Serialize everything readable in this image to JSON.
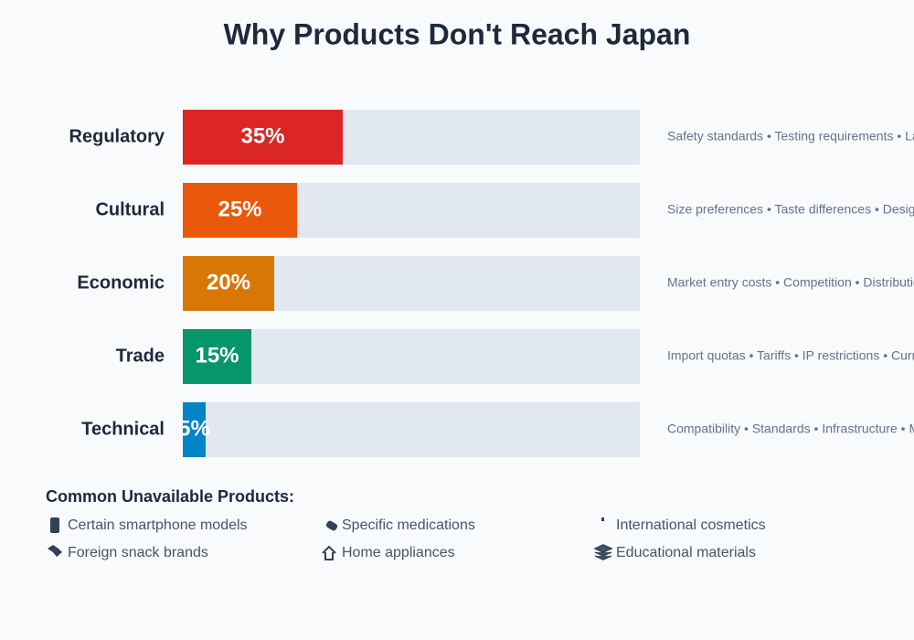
{
  "chart_data": {
    "type": "bar",
    "orientation": "horizontal",
    "title": "Why Products Don't Reach Japan",
    "categories": [
      "Regulatory",
      "Cultural",
      "Economic",
      "Trade",
      "Technical"
    ],
    "values": [
      35,
      25,
      20,
      15,
      5
    ],
    "value_labels": [
      "35%",
      "25%",
      "20%",
      "15%",
      "5%"
    ],
    "colors": [
      "#dc2626",
      "#ea580c",
      "#d97706",
      "#059669",
      "#0284c7"
    ],
    "track_color": "#e2e8f0",
    "xlim": [
      0,
      100
    ],
    "descriptions": [
      "Safety standards • Testing requirements • La",
      "Size preferences • Taste differences • Desig",
      "Market entry costs • Competition • Distributio",
      "Import quotas • Tariffs • IP restrictions • Curr",
      "Compatibility • Standards • Infrastructure • M"
    ]
  },
  "products": {
    "title": "Common Unavailable Products:",
    "items": [
      "Certain smartphone models",
      "Specific medications",
      "International cosmetics",
      "Foreign snack brands",
      "Home appliances",
      "Educational materials"
    ]
  }
}
